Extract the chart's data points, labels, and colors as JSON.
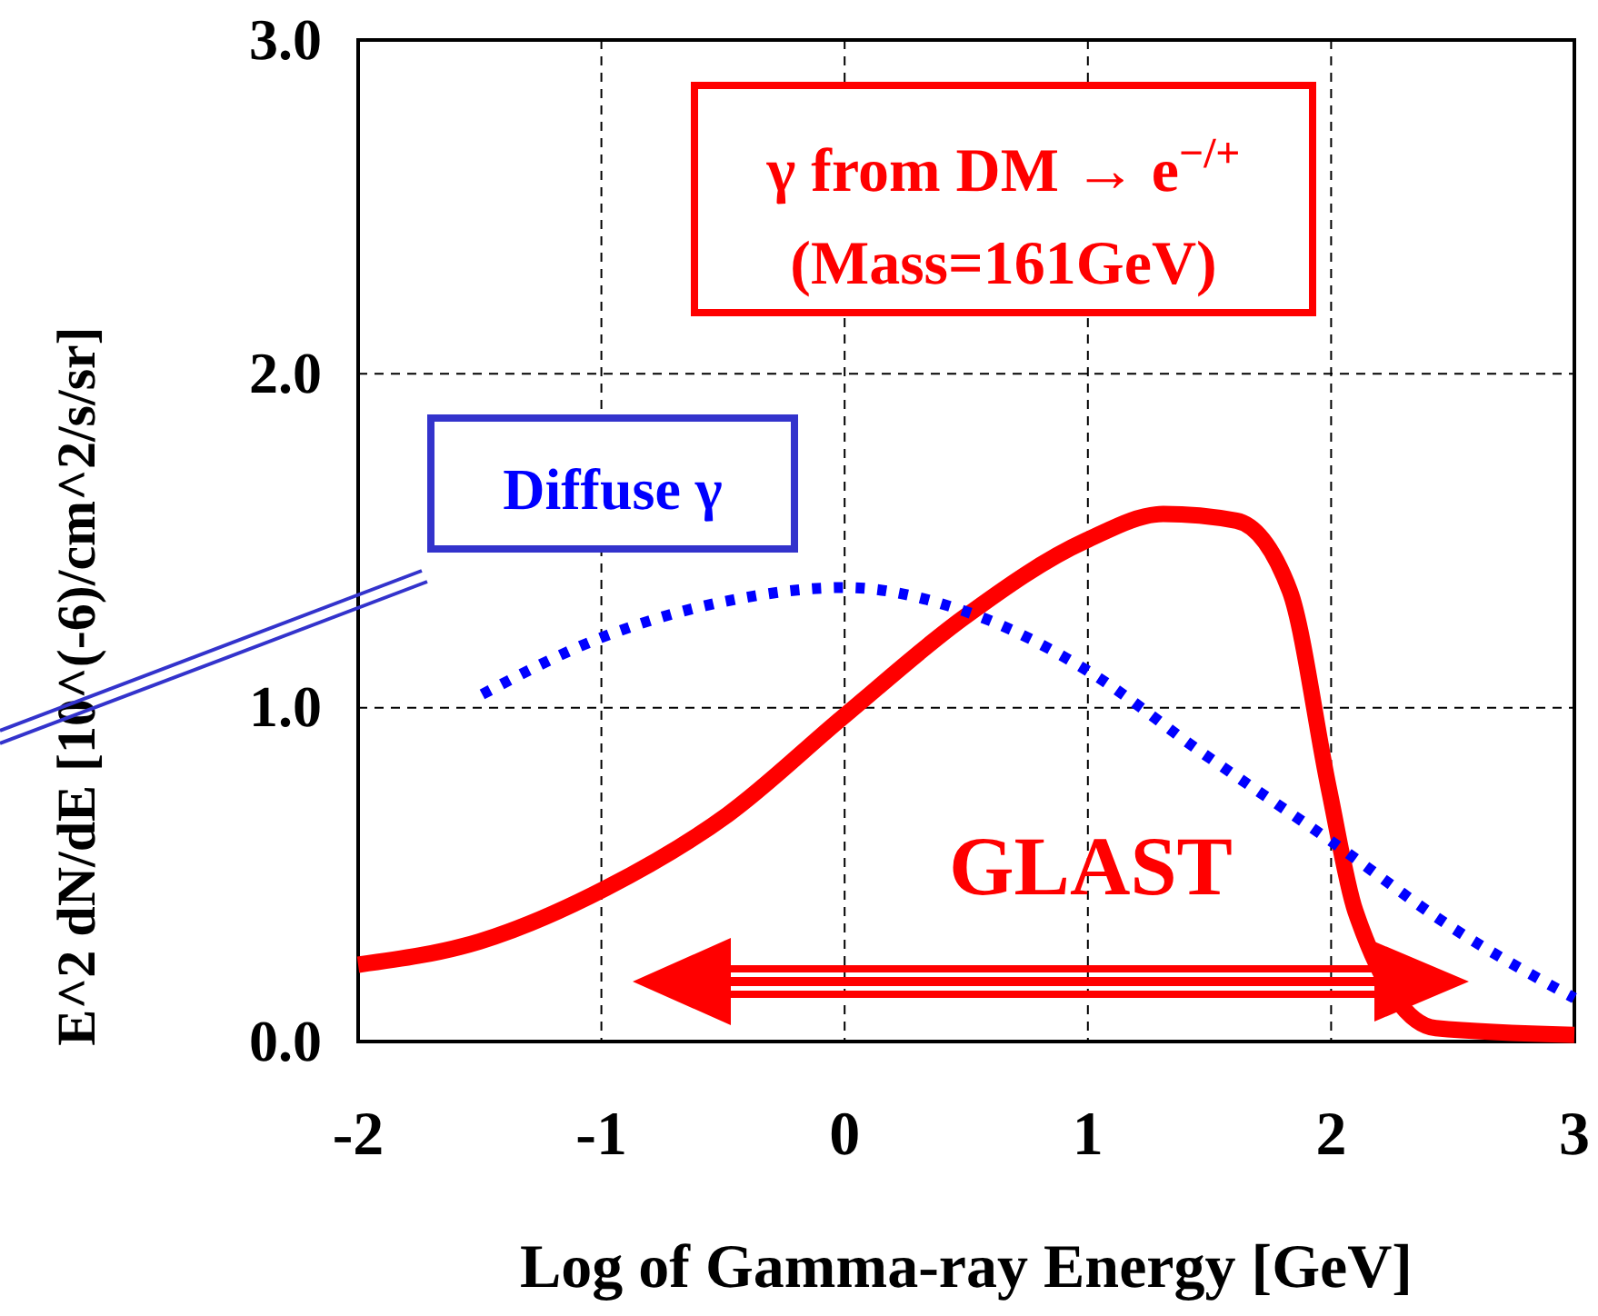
{
  "chart_data": {
    "type": "line",
    "xlabel": "Log of Gamma-ray Energy [GeV]",
    "ylabel": "E^2 dN/dE [10^(-6)/cm^2/s/sr]",
    "xlim": [
      -2,
      3
    ],
    "xticks": [
      -2,
      -1,
      0,
      1,
      2,
      3
    ],
    "ylim": [
      0,
      3
    ],
    "yticks": [
      {
        "value": 0,
        "label": "0.0"
      },
      {
        "value": 1,
        "label": "1.0"
      },
      {
        "value": 2,
        "label": "2.0"
      },
      {
        "value": 3,
        "label": "3.0"
      }
    ],
    "grid": true,
    "line_style": "solid",
    "marker": "none",
    "series": [
      {
        "color": "#ff0000",
        "x": [
          -2,
          -1.5,
          -0.98,
          -0.48,
          -0.01,
          0.49,
          0.99,
          1.31,
          1.61,
          1.83,
          1.99,
          2.1,
          2.43,
          3.0
        ],
        "values": [
          0.23,
          0.3,
          0.46,
          0.68,
          0.97,
          1.27,
          1.5,
          1.58,
          1.56,
          1.35,
          0.76,
          0.39,
          0.04,
          0.02
        ]
      },
      {
        "color": "#0000ff",
        "line_style": "dotted",
        "x": [
          -1.49,
          -1.0,
          -0.48,
          0,
          0.49,
          1.0,
          1.46,
          2.0,
          2.5,
          3.0
        ],
        "values": [
          1.04,
          1.21,
          1.32,
          1.36,
          1.29,
          1.11,
          0.87,
          0.6,
          0.34,
          0.13
        ]
      }
    ],
    "annotations": [
      "γ from DM → e$^{−/+}$",
      "(Mass=161GeV)",
      "Diffuse γ",
      "GLAST"
    ]
  }
}
